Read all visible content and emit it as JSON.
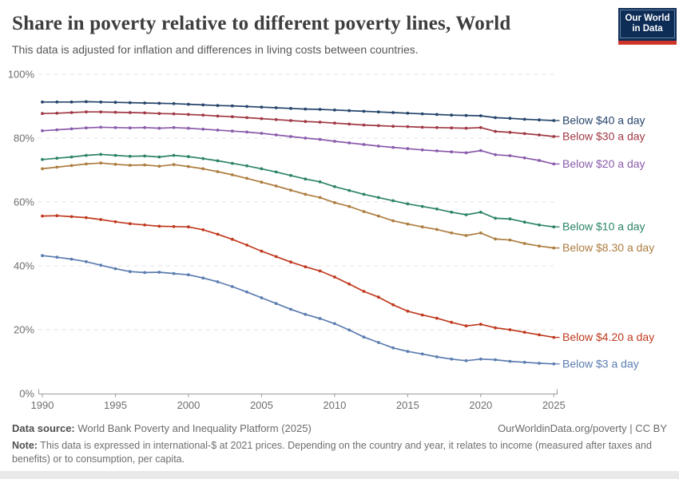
{
  "header": {
    "title": "Share in poverty relative to different poverty lines, World",
    "subtitle": "This data is adjusted for inflation and differences in living costs between countries.",
    "logo": {
      "line1": "Our World",
      "line2": "in Data",
      "bg_color": "#0d2d57",
      "accent_color": "#cf342b"
    }
  },
  "chart_data": {
    "type": "line",
    "title": "Share in poverty relative to different poverty lines, World",
    "xlabel": "",
    "ylabel": "",
    "unit": "%",
    "xlim": [
      1990,
      2025
    ],
    "ylim": [
      0,
      100
    ],
    "grid": "horizontal-dashed",
    "legend_position": "right-end-labels",
    "x_ticks": [
      1990,
      1995,
      2000,
      2005,
      2010,
      2015,
      2020,
      2025
    ],
    "y_ticks": [
      0,
      20,
      40,
      60,
      80,
      100
    ],
    "x": [
      1990,
      1991,
      1992,
      1993,
      1994,
      1995,
      1996,
      1997,
      1998,
      1999,
      2000,
      2001,
      2002,
      2003,
      2004,
      2005,
      2006,
      2007,
      2008,
      2009,
      2010,
      2011,
      2012,
      2013,
      2014,
      2015,
      2016,
      2017,
      2018,
      2019,
      2020,
      2021,
      2022,
      2023,
      2024,
      2025
    ],
    "series": [
      {
        "name": "Below $40 a day",
        "color": "#25456b",
        "values": [
          91.3,
          91.3,
          91.3,
          91.4,
          91.3,
          91.2,
          91.1,
          91.0,
          90.9,
          90.8,
          90.6,
          90.4,
          90.2,
          90.1,
          89.9,
          89.7,
          89.5,
          89.3,
          89.1,
          89.0,
          88.8,
          88.6,
          88.4,
          88.2,
          88.0,
          87.8,
          87.6,
          87.4,
          87.2,
          87.1,
          87.0,
          86.4,
          86.2,
          85.9,
          85.7,
          85.5
        ]
      },
      {
        "name": "Below $30 a day",
        "color": "#a03944",
        "values": [
          87.7,
          87.8,
          88.0,
          88.2,
          88.2,
          88.1,
          88.0,
          87.9,
          87.7,
          87.6,
          87.4,
          87.2,
          86.9,
          86.7,
          86.4,
          86.1,
          85.8,
          85.5,
          85.2,
          85.0,
          84.7,
          84.4,
          84.1,
          83.9,
          83.7,
          83.6,
          83.4,
          83.3,
          83.2,
          83.1,
          83.3,
          82.1,
          81.8,
          81.4,
          81.0,
          80.5
        ]
      },
      {
        "name": "Below $20 a day",
        "color": "#8a5cab",
        "values": [
          82.3,
          82.6,
          82.9,
          83.2,
          83.4,
          83.3,
          83.2,
          83.3,
          83.1,
          83.3,
          83.1,
          82.8,
          82.5,
          82.2,
          81.9,
          81.5,
          81.0,
          80.5,
          80.0,
          79.6,
          79.0,
          78.5,
          78.0,
          77.5,
          77.1,
          76.7,
          76.3,
          76.0,
          75.7,
          75.4,
          76.1,
          74.8,
          74.5,
          73.8,
          73.0,
          71.9
        ]
      },
      {
        "name": "Below $10 a day",
        "color": "#2c8465",
        "values": [
          73.3,
          73.7,
          74.1,
          74.6,
          74.9,
          74.6,
          74.3,
          74.4,
          74.1,
          74.6,
          74.2,
          73.6,
          72.9,
          72.1,
          71.3,
          70.4,
          69.4,
          68.3,
          67.2,
          66.3,
          64.8,
          63.6,
          62.4,
          61.4,
          60.4,
          59.4,
          58.6,
          57.8,
          56.8,
          56.0,
          56.8,
          54.9,
          54.7,
          53.7,
          52.8,
          52.2
        ]
      },
      {
        "name": "Below $8.30 a day",
        "color": "#ad7d3f",
        "values": [
          70.4,
          70.9,
          71.4,
          71.9,
          72.2,
          71.8,
          71.5,
          71.6,
          71.2,
          71.7,
          71.1,
          70.4,
          69.5,
          68.5,
          67.4,
          66.2,
          65.0,
          63.7,
          62.4,
          61.4,
          59.8,
          58.6,
          57.0,
          55.6,
          54.1,
          53.1,
          52.2,
          51.4,
          50.3,
          49.5,
          50.3,
          48.4,
          48.1,
          47.0,
          46.2,
          45.6
        ]
      },
      {
        "name": "Below $4.20 a day",
        "color": "#c03a1f",
        "values": [
          55.6,
          55.7,
          55.4,
          55.1,
          54.5,
          53.8,
          53.2,
          52.8,
          52.4,
          52.3,
          52.2,
          51.3,
          49.9,
          48.3,
          46.5,
          44.6,
          42.9,
          41.2,
          39.7,
          38.4,
          36.5,
          34.3,
          32.0,
          30.2,
          27.8,
          25.8,
          24.6,
          23.6,
          22.3,
          21.2,
          21.7,
          20.6,
          20.0,
          19.2,
          18.4,
          17.6
        ]
      },
      {
        "name": "Below $3 a day",
        "color": "#5b7cb0",
        "values": [
          43.2,
          42.7,
          42.1,
          41.3,
          40.2,
          39.1,
          38.2,
          37.9,
          38.0,
          37.6,
          37.2,
          36.2,
          35.0,
          33.5,
          31.8,
          30.0,
          28.2,
          26.4,
          24.8,
          23.5,
          21.9,
          19.9,
          17.7,
          16.0,
          14.3,
          13.2,
          12.4,
          11.5,
          10.8,
          10.3,
          10.8,
          10.6,
          10.1,
          9.8,
          9.5,
          9.3
        ]
      }
    ]
  },
  "footer": {
    "source_label": "Data source:",
    "source_text": " World Bank Poverty and Inequality Platform (2025)",
    "rights": "OurWorldinData.org/poverty | CC BY",
    "note_label": "Note:",
    "note_text": " This data is expressed in international-$ at 2021 prices. Depending on the country and year, it relates to income (measured after taxes and benefits) or to consumption, per capita."
  }
}
